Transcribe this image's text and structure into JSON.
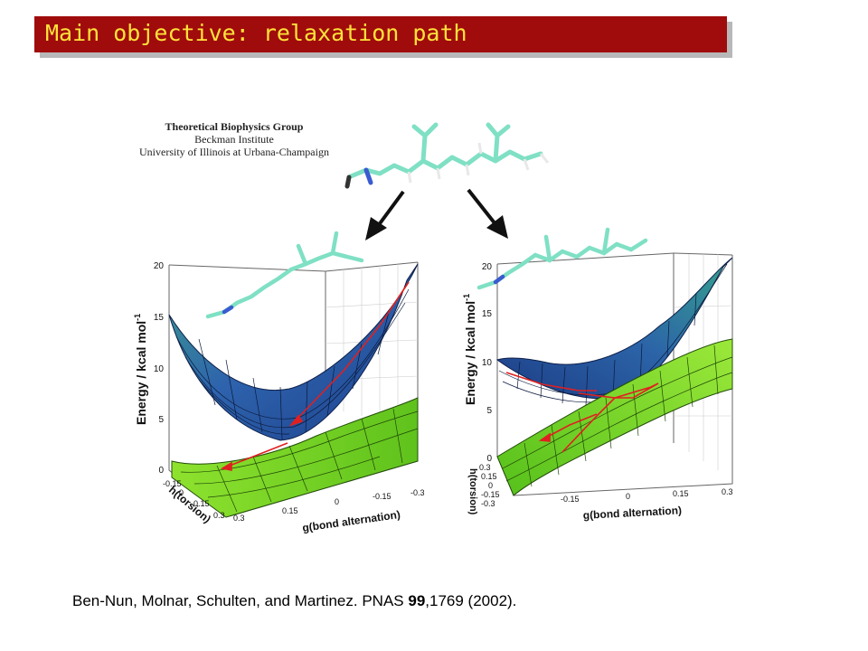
{
  "slide": {
    "title": "Main objective: relaxation path",
    "figure_credit": {
      "line1": "Theoretical Biophysics Group",
      "line2": "Beckman Institute",
      "line3": "University of Illinois at Urbana-Champaign"
    },
    "citation": {
      "prefix": "Ben-Nun, Molnar, Schulten, and Martinez. PNAS ",
      "volume": "99",
      "suffix": ",1769 (2002)."
    }
  },
  "left_panel": {
    "z_ticks": [
      "20",
      "15",
      "10",
      "5",
      "0"
    ],
    "z_label": "Energy / kcal mol",
    "z_sup": "-1",
    "h_label": "h(torsion)",
    "h_ticks": [
      "-0.15",
      "0",
      "0.15",
      "0.3"
    ],
    "g_label": "g(bond alternation)",
    "g_ticks": [
      "0.3",
      "0.15",
      "0",
      "-0.15",
      "-0.3"
    ]
  },
  "right_panel": {
    "z_ticks": [
      "20",
      "15",
      "10",
      "5",
      "0"
    ],
    "z_label": "Energy / kcal mol",
    "z_sup": "-1",
    "h_label": "h(torsion)",
    "h_ticks": [
      "0.3",
      "0.15",
      "0",
      "-0.15",
      "-0.3"
    ],
    "g_label": "g(bond alternation)",
    "g_ticks": [
      "-0.15",
      "0",
      "0.15",
      "0.3"
    ]
  },
  "colors": {
    "title_bg": "#a00c0c",
    "title_text": "#ffe23a",
    "upper_surface": "#2f6fb0",
    "lower_surface": "#7ed321",
    "path": "#e02020",
    "molecule": "#7fe0c4"
  }
}
